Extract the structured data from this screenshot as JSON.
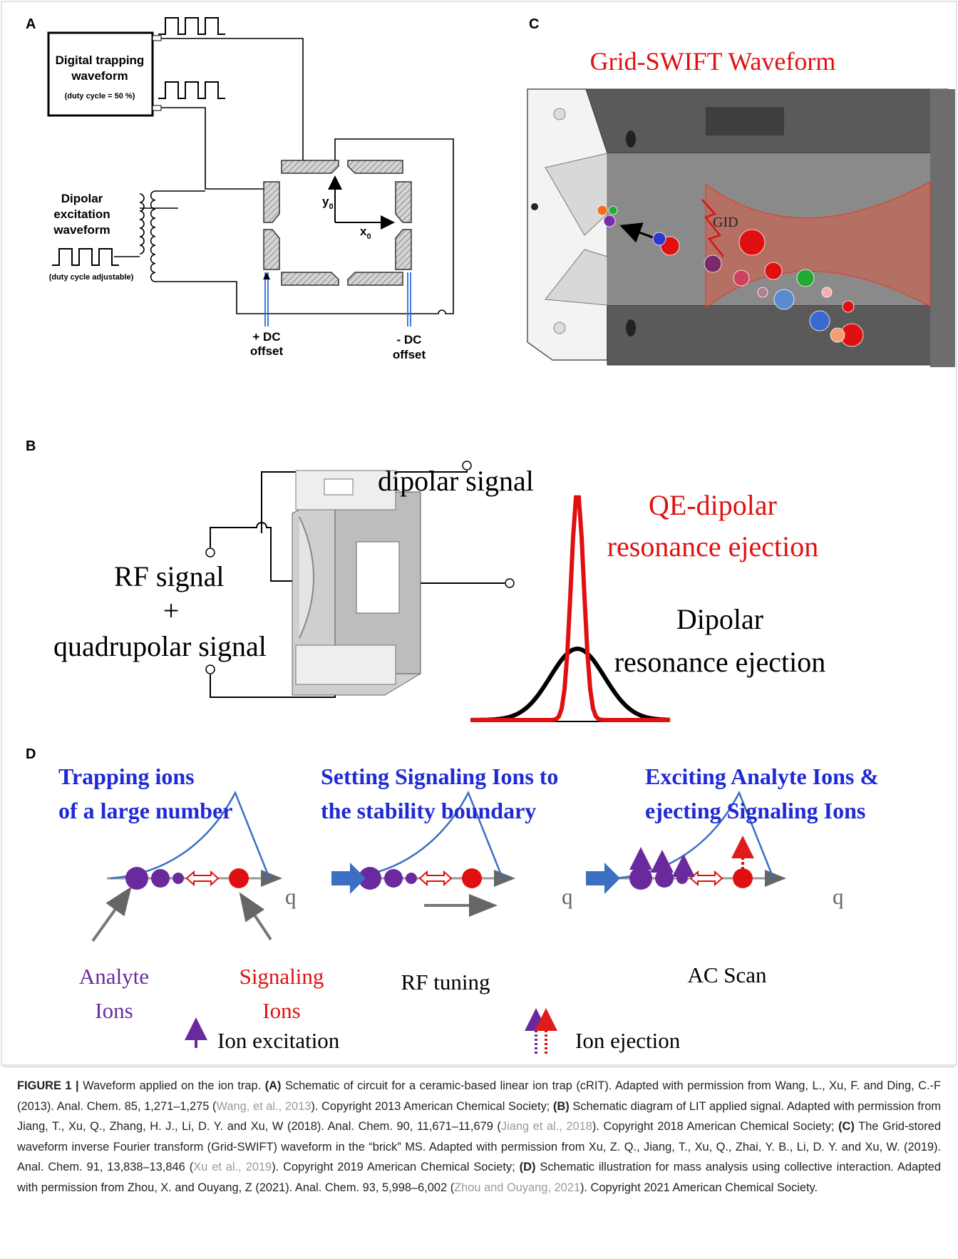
{
  "panel_a": {
    "label": "A",
    "box_title": [
      "Digital trapping",
      "waveform"
    ],
    "box_note": "(duty cycle = 50 %)",
    "dipolar": [
      "Dipolar",
      "excitation",
      "waveform"
    ],
    "dipolar_note": "(duty cycle adjustable)",
    "y_axis": {
      "main": "y",
      "sub": "0"
    },
    "x_axis": {
      "main": "x",
      "sub": "0"
    },
    "dc_plus": [
      "+ DC",
      "offset"
    ],
    "dc_minus": [
      "- DC",
      "offset"
    ]
  },
  "panel_c": {
    "label": "C",
    "title": "Grid-SWIFT Waveform",
    "tag": "GID"
  },
  "panel_b": {
    "label": "B",
    "dipolar_signal": "dipolar signal",
    "rf_signal": "RF signal",
    "plus": "+",
    "quadrupolar_signal": "quadrupolar signal",
    "qe_dipolar": [
      "QE-dipolar",
      "resonance ejection"
    ],
    "dipolar": [
      "Dipolar",
      "resonance ejection"
    ]
  },
  "panel_d": {
    "label": "D",
    "stages": [
      {
        "title": [
          "Trapping ions",
          "of a large number"
        ],
        "axis": "q"
      },
      {
        "title": [
          "Setting Signaling Ions to",
          "the stability boundary"
        ],
        "axis": "q",
        "note": "RF tuning"
      },
      {
        "title": [
          "Exciting Analyte Ions &",
          "ejecting Signaling Ions"
        ],
        "axis": "q",
        "note": "AC Scan"
      }
    ],
    "analyte": [
      "Analyte",
      "Ions"
    ],
    "signaling": [
      "Signaling",
      "Ions"
    ],
    "legend": {
      "excitation": "Ion excitation",
      "ejection": "Ion ejection"
    }
  },
  "caption": [
    {
      "text": "FIGURE 1 | ",
      "style": "bold"
    },
    {
      "text": "Waveform applied on the ion trap. ",
      "style": "plain"
    },
    {
      "text": "(A)",
      "style": "bold"
    },
    {
      "text": " Schematic of circuit for a ceramic-based linear ion trap (cRIT). Adapted with permission from Wang, L., Xu, F. and Ding, C.-F (2013). Anal. Chem. 85, 1,271–1,275 (",
      "style": "plain"
    },
    {
      "text": "Wang, et al., 2013",
      "style": "link"
    },
    {
      "text": "). Copyright 2013 American Chemical Society; ",
      "style": "plain"
    },
    {
      "text": "(B)",
      "style": "bold"
    },
    {
      "text": " Schematic diagram of LIT applied signal. Adapted with permission from Jiang, T., Xu, Q., Zhang, H. J., Li, D. Y. and Xu, W (2018). Anal. Chem. 90, 11,671–11,679 (",
      "style": "plain"
    },
    {
      "text": "Jiang et al., 2018",
      "style": "link"
    },
    {
      "text": "). Copyright 2018 American Chemical Society; ",
      "style": "plain"
    },
    {
      "text": "(C)",
      "style": "bold"
    },
    {
      "text": " The Grid-stored waveform inverse Fourier transform (Grid-SWIFT) waveform in the “brick” MS. Adapted with permission from Xu, Z. Q., Jiang, T., Xu, Q., Zhai, Y. B., Li, D. Y. and Xu, W. (2019). Anal. Chem. 91, 13,838–13,846 (",
      "style": "plain"
    },
    {
      "text": "Xu et al., 2019",
      "style": "link"
    },
    {
      "text": "). Copyright 2019 American Chemical Society; ",
      "style": "plain"
    },
    {
      "text": "(D)",
      "style": "bold"
    },
    {
      "text": " Schematic illustration for mass analysis using collective interaction. Adapted with permission from Zhou, X. and Ouyang, Z (2021). Anal. Chem. 93, 5,998–6,002 (",
      "style": "plain"
    },
    {
      "text": "Zhou and Ouyang, 2021",
      "style": "link"
    },
    {
      "text": "). Copyright 2021 American Chemical Society.",
      "style": "plain"
    }
  ]
}
